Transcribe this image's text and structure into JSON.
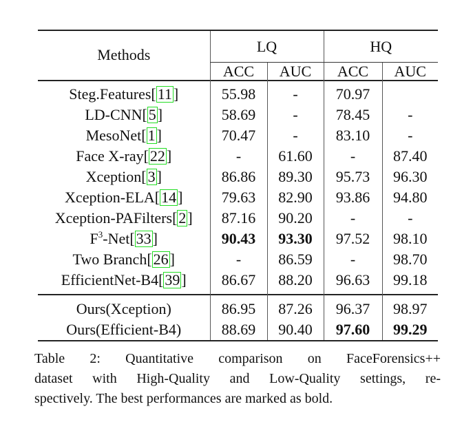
{
  "header": {
    "methods": "Methods",
    "groups": [
      "LQ",
      "HQ"
    ],
    "metrics": [
      "ACC",
      "AUC",
      "ACC",
      "AUC"
    ]
  },
  "rows": [
    {
      "name": "Steg.Features",
      "cite": "11",
      "vals": [
        "55.98",
        "-",
        "70.97",
        ""
      ],
      "bold": [
        false,
        false,
        false,
        false
      ]
    },
    {
      "name": "LD-CNN",
      "cite": "5",
      "vals": [
        "58.69",
        "-",
        "78.45",
        "-"
      ],
      "bold": [
        false,
        false,
        false,
        false
      ]
    },
    {
      "name": "MesoNet",
      "cite": "1",
      "vals": [
        "70.47",
        "-",
        "83.10",
        "-"
      ],
      "bold": [
        false,
        false,
        false,
        false
      ]
    },
    {
      "name": "Face X-ray",
      "cite": "22",
      "vals": [
        "-",
        "61.60",
        "-",
        "87.40"
      ],
      "bold": [
        false,
        false,
        false,
        false
      ]
    },
    {
      "name": "Xception",
      "cite": "3",
      "vals": [
        "86.86",
        "89.30",
        "95.73",
        "96.30"
      ],
      "bold": [
        false,
        false,
        false,
        false
      ]
    },
    {
      "name": "Xception-ELA",
      "cite": "14",
      "vals": [
        "79.63",
        "82.90",
        "93.86",
        "94.80"
      ],
      "bold": [
        false,
        false,
        false,
        false
      ]
    },
    {
      "name": "Xception-PAFilters",
      "cite": "2",
      "vals": [
        "87.16",
        "90.20",
        "-",
        "-"
      ],
      "bold": [
        false,
        false,
        false,
        false
      ]
    },
    {
      "name": "F",
      "sup": "3",
      "name_suffix": "-Net",
      "cite": "33",
      "vals": [
        "90.43",
        "93.30",
        "97.52",
        "98.10"
      ],
      "bold": [
        true,
        true,
        false,
        false
      ]
    },
    {
      "name": "Two Branch",
      "cite": "26",
      "vals": [
        "-",
        "86.59",
        "-",
        "98.70"
      ],
      "bold": [
        false,
        false,
        false,
        false
      ]
    },
    {
      "name": "EfficientNet-B4",
      "cite": "39",
      "vals": [
        "86.67",
        "88.20",
        "96.63",
        "99.18"
      ],
      "bold": [
        false,
        false,
        false,
        false
      ]
    }
  ],
  "ours": [
    {
      "name": "Ours(Xception)",
      "vals": [
        "86.95",
        "87.26",
        "96.37",
        "98.97"
      ],
      "bold": [
        false,
        false,
        false,
        false
      ]
    },
    {
      "name": "Ours(Efficient-B4)",
      "vals": [
        "88.69",
        "90.40",
        "97.60",
        "99.29"
      ],
      "bold": [
        false,
        false,
        true,
        true
      ]
    }
  ],
  "caption": {
    "lines": [
      "Table 2:  Quantitative comparison on FaceForensics++",
      "dataset with High-Quality and Low-Quality settings, re-",
      "spectively. The best performances are marked as bold."
    ]
  },
  "colors": {
    "cite_box": "#22dd22"
  }
}
